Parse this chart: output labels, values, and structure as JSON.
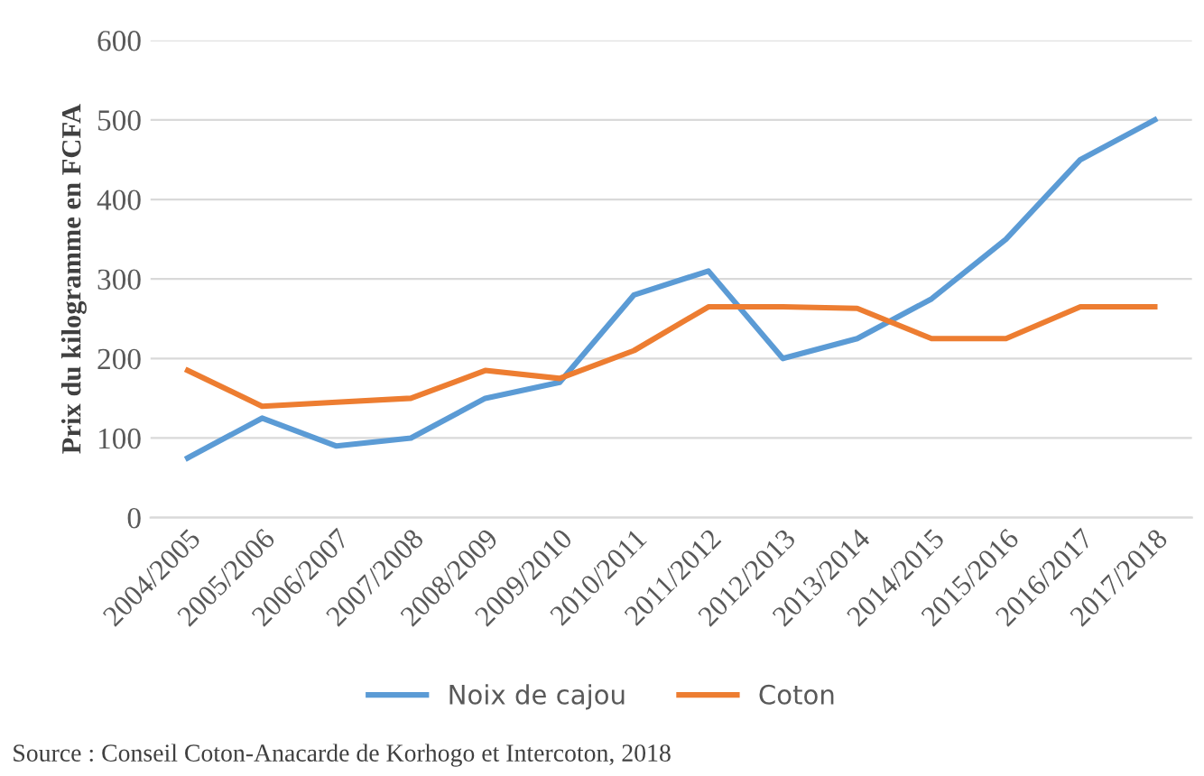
{
  "chart_data": {
    "type": "line",
    "ylabel": "Prix du kilogramme en FCFA",
    "categories": [
      "2004/2005",
      "2005/2006",
      "2006/2007",
      "2007/2008",
      "2008/2009",
      "2009/2010",
      "2010/2011",
      "2011/2012",
      "2012/2013",
      "2013/2014",
      "2014/2015",
      "2015/2016",
      "2016/2017",
      "2017/2018"
    ],
    "series": [
      {
        "name": "Noix de cajou",
        "color": "#5b9bd5",
        "values": [
          75,
          125,
          90,
          100,
          150,
          170,
          280,
          310,
          200,
          225,
          275,
          350,
          450,
          500
        ]
      },
      {
        "name": "Coton",
        "color": "#ed7d31",
        "values": [
          185,
          140,
          145,
          150,
          185,
          175,
          210,
          265,
          265,
          263,
          225,
          225,
          265,
          265
        ]
      }
    ],
    "ylim": [
      0,
      600
    ],
    "yticks": [
      0,
      100,
      200,
      300,
      400,
      500,
      600
    ],
    "grid": "y",
    "legend": "bottom",
    "marker": "none",
    "line_style": "solid",
    "annotations": [
      "Source : Conseil Coton-Anacarde de Korhogo et Intercoton, 2018"
    ]
  }
}
